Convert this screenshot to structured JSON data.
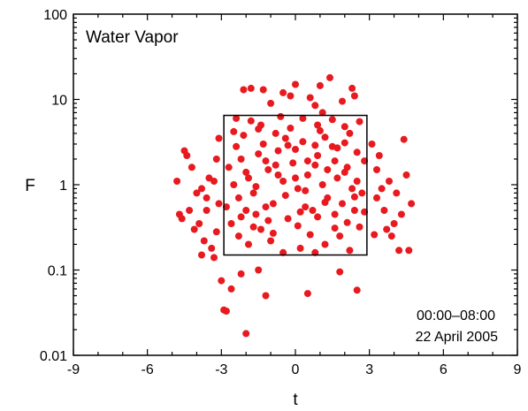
{
  "chart_data": {
    "type": "scatter",
    "title": "Water Vapor",
    "xlabel": "t",
    "ylabel": "F",
    "xlim": [
      -9,
      9
    ],
    "ylim": [
      0.01,
      100
    ],
    "yscale": "log",
    "x_ticks": [
      -9,
      -6,
      -3,
      0,
      3,
      6,
      9
    ],
    "x_tick_labels": [
      "-9",
      "-6",
      "-3",
      "0",
      "3",
      "6",
      "9"
    ],
    "y_ticks": [
      0.01,
      0.1,
      1,
      10,
      100
    ],
    "y_tick_labels": [
      "0.01",
      "0.1",
      "1",
      "10",
      "100"
    ],
    "annotations": [
      "00:00–08:00",
      "22 April 2005"
    ],
    "box": {
      "x": [
        -2.9,
        2.9
      ],
      "y": [
        0.15,
        6.5
      ]
    },
    "grid": false,
    "legend": "none",
    "marker_color": "#e8191f",
    "points": [
      [
        -2.0,
        0.018
      ],
      [
        -2.8,
        0.033
      ],
      [
        -2.9,
        0.034
      ],
      [
        0.5,
        0.053
      ],
      [
        2.5,
        0.058
      ],
      [
        -1.2,
        0.05
      ],
      [
        -2.6,
        0.06
      ],
      [
        -3.0,
        0.075
      ],
      [
        -2.2,
        0.09
      ],
      [
        -1.5,
        0.1
      ],
      [
        1.8,
        0.095
      ],
      [
        -2.1,
        13.0
      ],
      [
        -1.8,
        13.5
      ],
      [
        -1.3,
        13.0
      ],
      [
        1.0,
        14.5
      ],
      [
        1.4,
        18.0
      ],
      [
        2.3,
        13.5
      ],
      [
        0.0,
        15.0
      ],
      [
        -0.5,
        12.0
      ],
      [
        2.4,
        11.0
      ],
      [
        1.9,
        9.5
      ],
      [
        -1.0,
        9.0
      ],
      [
        0.6,
        10.5
      ],
      [
        -0.2,
        11.0
      ],
      [
        0.8,
        8.5
      ],
      [
        -4.5,
        2.5
      ],
      [
        -4.4,
        2.2
      ],
      [
        -4.8,
        1.1
      ],
      [
        -4.7,
        0.45
      ],
      [
        -4.3,
        0.5
      ],
      [
        -4.6,
        0.4
      ],
      [
        -3.6,
        0.5
      ],
      [
        -3.9,
        0.35
      ],
      [
        -4.1,
        0.3
      ],
      [
        -3.7,
        0.22
      ],
      [
        -3.4,
        0.18
      ],
      [
        -3.8,
        0.15
      ],
      [
        -3.3,
        0.14
      ],
      [
        -4.2,
        1.6
      ],
      [
        -3.8,
        0.9
      ],
      [
        -3.5,
        1.2
      ],
      [
        -3.2,
        2.0
      ],
      [
        -3.6,
        0.7
      ],
      [
        -4.0,
        0.8
      ],
      [
        -3.1,
        0.6
      ],
      [
        4.4,
        3.4
      ],
      [
        4.5,
        1.3
      ],
      [
        4.7,
        0.6
      ],
      [
        4.3,
        0.45
      ],
      [
        4.0,
        0.35
      ],
      [
        4.2,
        0.17
      ],
      [
        4.6,
        0.17
      ],
      [
        3.9,
        0.25
      ],
      [
        3.6,
        0.5
      ],
      [
        3.5,
        0.9
      ],
      [
        3.3,
        1.5
      ],
      [
        3.8,
        1.1
      ],
      [
        4.1,
        0.8
      ],
      [
        3.4,
        2.2
      ],
      [
        3.7,
        0.3
      ],
      [
        -1.5,
        4.5
      ],
      [
        -1.8,
        5.6
      ],
      [
        0.3,
        6.0
      ],
      [
        1.5,
        5.8
      ],
      [
        2.0,
        4.8
      ],
      [
        -0.6,
        6.3
      ],
      [
        0.9,
        5.0
      ],
      [
        -2.4,
        6.0
      ],
      [
        2.6,
        5.5
      ],
      [
        1.1,
        7.0
      ],
      [
        -1.9,
        0.2
      ],
      [
        -1.0,
        0.22
      ],
      [
        0.2,
        0.18
      ],
      [
        1.2,
        0.2
      ],
      [
        2.2,
        0.17
      ],
      [
        -0.5,
        0.16
      ],
      [
        0.8,
        0.16
      ],
      [
        1.8,
        0.25
      ],
      [
        -2.3,
        0.25
      ],
      [
        -1.4,
        0.3
      ],
      [
        -2.5,
        1.0
      ],
      [
        -2.2,
        2.0
      ],
      [
        -2.0,
        0.5
      ],
      [
        -1.7,
        0.8
      ],
      [
        -1.3,
        3.0
      ],
      [
        -1.1,
        1.5
      ],
      [
        -0.9,
        0.6
      ],
      [
        -0.7,
        2.5
      ],
      [
        -0.5,
        1.1
      ],
      [
        -0.3,
        0.4
      ],
      [
        -0.1,
        1.8
      ],
      [
        0.1,
        0.9
      ],
      [
        0.3,
        3.2
      ],
      [
        0.5,
        1.3
      ],
      [
        0.7,
        0.5
      ],
      [
        0.9,
        2.2
      ],
      [
        1.1,
        1.0
      ],
      [
        1.3,
        0.7
      ],
      [
        1.5,
        2.8
      ],
      [
        1.7,
        1.2
      ],
      [
        1.9,
        0.6
      ],
      [
        2.1,
        1.6
      ],
      [
        2.3,
        0.9
      ],
      [
        2.5,
        2.4
      ],
      [
        2.7,
        0.8
      ],
      [
        -2.6,
        0.35
      ],
      [
        -2.1,
        3.8
      ],
      [
        -1.6,
        0.45
      ],
      [
        -1.2,
        1.9
      ],
      [
        -0.8,
        4.0
      ],
      [
        -0.4,
        0.75
      ],
      [
        0.0,
        2.6
      ],
      [
        0.4,
        0.55
      ],
      [
        0.8,
        1.7
      ],
      [
        1.2,
        3.6
      ],
      [
        1.6,
        0.45
      ],
      [
        2.0,
        1.4
      ],
      [
        2.4,
        0.5
      ],
      [
        2.8,
        1.9
      ],
      [
        -2.7,
        1.6
      ],
      [
        -2.3,
        0.7
      ],
      [
        -1.9,
        1.2
      ],
      [
        -1.5,
        2.3
      ],
      [
        -1.1,
        0.38
      ],
      [
        -0.7,
        1.3
      ],
      [
        -0.3,
        2.9
      ],
      [
        0.1,
        0.33
      ],
      [
        0.5,
        1.9
      ],
      [
        0.9,
        0.42
      ],
      [
        1.3,
        1.5
      ],
      [
        1.7,
        2.7
      ],
      [
        2.1,
        0.36
      ],
      [
        2.5,
        1.1
      ],
      [
        -2.4,
        2.8
      ],
      [
        -2.0,
        1.4
      ],
      [
        -1.6,
        0.95
      ],
      [
        -1.2,
        0.55
      ],
      [
        -0.8,
        1.7
      ],
      [
        -0.4,
        3.5
      ],
      [
        0.0,
        1.2
      ],
      [
        0.4,
        0.85
      ],
      [
        0.8,
        2.9
      ],
      [
        1.2,
        0.62
      ],
      [
        1.6,
        1.9
      ],
      [
        2.0,
        3.1
      ],
      [
        2.4,
        0.72
      ],
      [
        2.8,
        0.48
      ],
      [
        -2.8,
        0.55
      ],
      [
        -2.5,
        4.2
      ],
      [
        -1.4,
        5.0
      ],
      [
        -0.2,
        4.6
      ],
      [
        1.0,
        4.3
      ],
      [
        2.2,
        4.0
      ],
      [
        -0.9,
        0.27
      ],
      [
        0.6,
        0.26
      ],
      [
        1.6,
        0.31
      ],
      [
        -1.7,
        0.32
      ],
      [
        2.6,
        0.32
      ],
      [
        -2.2,
        0.42
      ],
      [
        0.2,
        0.48
      ],
      [
        -3.1,
        3.5
      ],
      [
        3.1,
        3.0
      ],
      [
        -3.2,
        0.28
      ],
      [
        3.2,
        0.26
      ],
      [
        -3.3,
        1.1
      ],
      [
        3.3,
        0.7
      ]
    ]
  }
}
